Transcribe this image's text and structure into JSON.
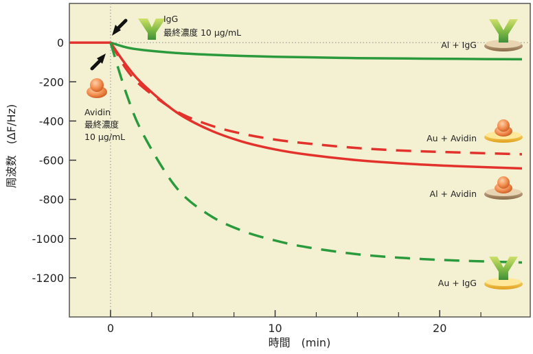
{
  "chart_data": {
    "type": "line",
    "xlabel": "時間　(min)",
    "ylabel": "周波数　(ΔF/Hz)",
    "xlim": [
      -2.5,
      25.5
    ],
    "ylim": [
      -1400,
      200
    ],
    "xticks": [
      0,
      10,
      20
    ],
    "yticks": [
      0,
      -200,
      -400,
      -600,
      -800,
      -1000,
      -1200
    ],
    "xminor": [
      2.5,
      5,
      7.5,
      12.5,
      15,
      17.5,
      22.5
    ],
    "grid": false,
    "baseline_x": [
      -2.5,
      0
    ],
    "baseline_y": 0,
    "series": [
      {
        "name": "Al + IgG",
        "color": "#2a9a3c",
        "dash": false,
        "x": [
          0,
          1,
          2,
          4,
          6,
          8,
          10,
          12,
          15,
          18,
          21,
          25
        ],
        "y": [
          0,
          -25,
          -38,
          -53,
          -62,
          -68,
          -72,
          -75,
          -79,
          -81,
          -83,
          -85
        ]
      },
      {
        "name": "Au + Avidin",
        "color": "#e2322b",
        "dash": true,
        "x": [
          0,
          1,
          2,
          4,
          6,
          8,
          10,
          12,
          15,
          18,
          21,
          25
        ],
        "y": [
          0,
          -140,
          -230,
          -350,
          -420,
          -465,
          -495,
          -515,
          -538,
          -552,
          -560,
          -570
        ]
      },
      {
        "name": "Al + Avidin",
        "color": "#e2322b",
        "dash": false,
        "x": [
          0,
          1,
          2,
          4,
          6,
          8,
          10,
          12,
          15,
          18,
          21,
          25
        ],
        "y": [
          0,
          -120,
          -215,
          -355,
          -445,
          -505,
          -545,
          -572,
          -600,
          -618,
          -630,
          -642
        ]
      },
      {
        "name": "Au + IgG",
        "color": "#2a9a3c",
        "dash": true,
        "x": [
          0,
          1,
          2,
          4,
          6,
          8,
          10,
          12,
          15,
          18,
          21,
          25
        ],
        "y": [
          0,
          -270,
          -470,
          -740,
          -880,
          -960,
          -1010,
          -1045,
          -1080,
          -1100,
          -1112,
          -1122
        ]
      }
    ],
    "annotations": {
      "igg": {
        "label": "IgG",
        "text": "最終濃度 10 μg/mL"
      },
      "avidin": {
        "label": "Avidin",
        "text1": "最終濃度",
        "text2": "10 μg/mL"
      }
    }
  }
}
